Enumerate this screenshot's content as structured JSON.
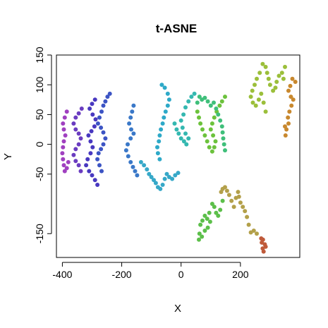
{
  "chart_data": {
    "type": "scatter",
    "title": "t-ASNE",
    "xlabel": "X",
    "ylabel": "Y",
    "xlim": [
      -420,
      400
    ],
    "ylim": [
      -190,
      150
    ],
    "x_ticks": [
      -400,
      -200,
      0,
      200
    ],
    "y_ticks": [
      -150,
      -50,
      0,
      50,
      100,
      150
    ],
    "x_tick_labels": [
      "-400",
      "-200",
      "0",
      "200"
    ],
    "y_tick_labels": [
      "-150",
      "-50",
      "0",
      "50",
      "100",
      "150"
    ],
    "grid": false,
    "legend": "none",
    "color_scale": "hue gradient along path (green-brown-orange-yellow-green-cyan-blue-purple-magenta)",
    "series": [
      {
        "color": "#bf5a3a",
        "points": [
          [
            275,
            -175
          ],
          [
            272,
            -165
          ],
          [
            282,
            -168
          ],
          [
            270,
            -158
          ],
          [
            278,
            -180
          ],
          [
            285,
            -172
          ],
          [
            276,
            -160
          ]
        ]
      },
      {
        "color": "#b3a04a",
        "points": [
          [
            255,
            -150
          ],
          [
            245,
            -145
          ],
          [
            235,
            -148
          ],
          [
            228,
            -135
          ],
          [
            222,
            -122
          ],
          [
            215,
            -112
          ],
          [
            208,
            -105
          ],
          [
            200,
            -98
          ],
          [
            195,
            -88
          ],
          [
            192,
            -80
          ],
          [
            185,
            -90
          ],
          [
            178,
            -105
          ],
          [
            170,
            -95
          ],
          [
            162,
            -85
          ],
          [
            155,
            -78
          ],
          [
            148,
            -72
          ],
          [
            140,
            -75
          ],
          [
            135,
            -80
          ]
        ]
      },
      {
        "color": "#5cbf4a",
        "points": [
          [
            140,
            -95
          ],
          [
            132,
            -110
          ],
          [
            125,
            -120
          ],
          [
            118,
            -115
          ],
          [
            112,
            -105
          ],
          [
            105,
            -100
          ],
          [
            95,
            -115
          ],
          [
            88,
            -125
          ],
          [
            80,
            -120
          ],
          [
            72,
            -128
          ],
          [
            65,
            -135
          ],
          [
            62,
            -150
          ],
          [
            60,
            -160
          ],
          [
            70,
            -155
          ],
          [
            80,
            -145
          ],
          [
            90,
            -140
          ],
          [
            98,
            -130
          ]
        ]
      },
      {
        "color": "#c8882e",
        "points": [
          [
            385,
            105
          ],
          [
            375,
            110
          ],
          [
            368,
            98
          ],
          [
            362,
            90
          ],
          [
            370,
            80
          ],
          [
            378,
            75
          ],
          [
            372,
            65
          ],
          [
            365,
            55
          ],
          [
            360,
            45
          ],
          [
            362,
            35
          ],
          [
            355,
            25
          ],
          [
            350,
            30
          ],
          [
            352,
            15
          ]
        ]
      },
      {
        "color": "#9bbf3a",
        "points": [
          [
            350,
            130
          ],
          [
            340,
            120
          ],
          [
            345,
            110
          ],
          [
            330,
            115
          ],
          [
            322,
            105
          ],
          [
            318,
            95
          ],
          [
            310,
            90
          ],
          [
            300,
            100
          ],
          [
            295,
            110
          ],
          [
            290,
            120
          ],
          [
            285,
            130
          ],
          [
            275,
            135
          ],
          [
            265,
            120
          ],
          [
            255,
            110
          ],
          [
            248,
            100
          ],
          [
            240,
            90
          ],
          [
            235,
            80
          ],
          [
            242,
            70
          ],
          [
            252,
            65
          ],
          [
            262,
            75
          ],
          [
            270,
            85
          ],
          [
            278,
            70
          ],
          [
            285,
            55
          ]
        ]
      },
      {
        "color": "#6cc23c",
        "points": [
          [
            148,
            80
          ],
          [
            138,
            72
          ],
          [
            130,
            65
          ],
          [
            120,
            55
          ],
          [
            112,
            45
          ],
          [
            105,
            35
          ],
          [
            100,
            25
          ],
          [
            108,
            15
          ],
          [
            116,
            5
          ],
          [
            112,
            -5
          ],
          [
            105,
            -12
          ],
          [
            95,
            -5
          ],
          [
            88,
            5
          ],
          [
            80,
            15
          ],
          [
            72,
            25
          ],
          [
            65,
            35
          ],
          [
            60,
            45
          ],
          [
            55,
            55
          ]
        ]
      },
      {
        "color": "#3fbf7a",
        "points": [
          [
            55,
            70
          ],
          [
            62,
            80
          ],
          [
            70,
            75
          ],
          [
            80,
            78
          ],
          [
            90,
            72
          ],
          [
            100,
            65
          ],
          [
            110,
            70
          ],
          [
            118,
            60
          ],
          [
            125,
            50
          ],
          [
            132,
            40
          ],
          [
            138,
            30
          ],
          [
            140,
            20
          ],
          [
            142,
            10
          ],
          [
            145,
            0
          ],
          [
            148,
            -10
          ]
        ]
      },
      {
        "color": "#34b8b0",
        "points": [
          [
            45,
            85
          ],
          [
            35,
            80
          ],
          [
            25,
            72
          ],
          [
            15,
            62
          ],
          [
            8,
            50
          ],
          [
            0,
            40
          ],
          [
            5,
            28
          ],
          [
            15,
            18
          ],
          [
            25,
            10
          ],
          [
            18,
            0
          ],
          [
            10,
            5
          ],
          [
            0,
            10
          ],
          [
            -8,
            18
          ],
          [
            -15,
            25
          ],
          [
            -22,
            35
          ]
        ]
      },
      {
        "color": "#2ea9c8",
        "points": [
          [
            -65,
            100
          ],
          [
            -55,
            95
          ],
          [
            -45,
            85
          ],
          [
            -40,
            75
          ],
          [
            -45,
            65
          ],
          [
            -52,
            55
          ],
          [
            -58,
            45
          ],
          [
            -62,
            35
          ],
          [
            -68,
            25
          ],
          [
            -72,
            15
          ],
          [
            -75,
            5
          ],
          [
            -80,
            -5
          ],
          [
            -78,
            -15
          ],
          [
            -72,
            -25
          ]
        ]
      },
      {
        "color": "#36a8c8",
        "points": [
          [
            -135,
            -30
          ],
          [
            -125,
            -35
          ],
          [
            -115,
            -42
          ],
          [
            -108,
            -50
          ],
          [
            -100,
            -55
          ],
          [
            -92,
            -60
          ],
          [
            -85,
            -65
          ],
          [
            -78,
            -72
          ],
          [
            -70,
            -75
          ],
          [
            -62,
            -68
          ],
          [
            -55,
            -58
          ],
          [
            -48,
            -50
          ],
          [
            -40,
            -55
          ],
          [
            -30,
            -58
          ],
          [
            -20,
            -52
          ],
          [
            -10,
            -48
          ]
        ]
      },
      {
        "color": "#3a78c8",
        "points": [
          [
            -160,
            65
          ],
          [
            -165,
            55
          ],
          [
            -170,
            45
          ],
          [
            -175,
            35
          ],
          [
            -168,
            25
          ],
          [
            -160,
            18
          ],
          [
            -170,
            10
          ],
          [
            -180,
            0
          ],
          [
            -185,
            -10
          ],
          [
            -178,
            -20
          ],
          [
            -170,
            -30
          ],
          [
            -162,
            -38
          ],
          [
            -155,
            -45
          ],
          [
            -148,
            -52
          ]
        ]
      },
      {
        "color": "#3c54c4",
        "points": [
          [
            -240,
            85
          ],
          [
            -248,
            80
          ],
          [
            -255,
            72
          ],
          [
            -262,
            65
          ],
          [
            -268,
            55
          ],
          [
            -275,
            45
          ],
          [
            -280,
            35
          ],
          [
            -270,
            28
          ],
          [
            -262,
            20
          ],
          [
            -255,
            10
          ],
          [
            -262,
            0
          ],
          [
            -270,
            -8
          ],
          [
            -278,
            -15
          ],
          [
            -282,
            -25
          ],
          [
            -275,
            -35
          ],
          [
            -268,
            -45
          ]
        ]
      },
      {
        "color": "#4838c0",
        "points": [
          [
            -290,
            75
          ],
          [
            -300,
            68
          ],
          [
            -308,
            60
          ],
          [
            -298,
            50
          ],
          [
            -288,
            42
          ],
          [
            -292,
            30
          ],
          [
            -302,
            22
          ],
          [
            -312,
            15
          ],
          [
            -305,
            5
          ],
          [
            -298,
            -5
          ],
          [
            -305,
            -15
          ],
          [
            -315,
            -25
          ],
          [
            -320,
            -35
          ],
          [
            -310,
            -45
          ],
          [
            -300,
            -52
          ],
          [
            -290,
            -60
          ],
          [
            -282,
            -68
          ]
        ]
      },
      {
        "color": "#6a3cc0",
        "points": [
          [
            -335,
            60
          ],
          [
            -345,
            52
          ],
          [
            -355,
            45
          ],
          [
            -362,
            35
          ],
          [
            -355,
            25
          ],
          [
            -345,
            18
          ],
          [
            -338,
            10
          ],
          [
            -345,
            0
          ],
          [
            -355,
            -8
          ],
          [
            -362,
            -18
          ],
          [
            -355,
            -28
          ],
          [
            -345,
            -35
          ],
          [
            -338,
            -45
          ]
        ]
      },
      {
        "color": "#a040c0",
        "points": [
          [
            -385,
            55
          ],
          [
            -392,
            45
          ],
          [
            -398,
            35
          ],
          [
            -395,
            25
          ],
          [
            -390,
            15
          ],
          [
            -395,
            5
          ],
          [
            -398,
            -5
          ],
          [
            -400,
            -15
          ],
          [
            -398,
            -25
          ],
          [
            -395,
            -35
          ],
          [
            -392,
            -45
          ],
          [
            -385,
            -40
          ],
          [
            -380,
            -30
          ]
        ]
      }
    ]
  }
}
